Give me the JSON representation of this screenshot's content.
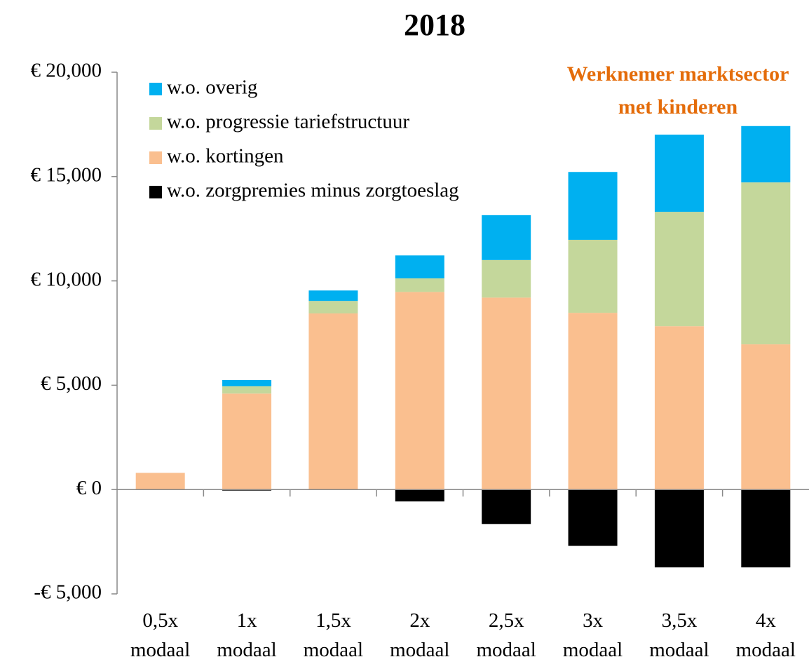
{
  "chart_data": {
    "type": "bar",
    "stacked": true,
    "title": "2018",
    "annotation": [
      "Werknemer marktsector",
      "met kinderen"
    ],
    "annotation_color": "#e46c0a",
    "categories": [
      [
        "0,5x",
        "modaal"
      ],
      [
        "1x",
        "modaal"
      ],
      [
        "1,5x",
        "modaal"
      ],
      [
        "2x",
        "modaal"
      ],
      [
        "2,5x",
        "modaal"
      ],
      [
        "3x",
        "modaal"
      ],
      [
        "3,5x",
        "modaal"
      ],
      [
        "4x",
        "modaal"
      ]
    ],
    "series": [
      {
        "name": "w.o. overig",
        "color": "#00b0f0",
        "values": [
          0,
          300,
          500,
          1100,
          2150,
          3250,
          3700,
          2700
        ]
      },
      {
        "name": "w.o. progressie tariefstructuur",
        "color": "#c4d79b",
        "values": [
          0,
          350,
          600,
          650,
          1800,
          3500,
          5480,
          7760
        ]
      },
      {
        "name": "w.o. kortingen",
        "color": "#fabf8f",
        "values": [
          800,
          4600,
          8440,
          9470,
          9200,
          8470,
          7830,
          6960
        ]
      },
      {
        "name": "w.o. zorgpremies minus zorgtoeslag",
        "color": "#000000",
        "values": [
          0,
          -50,
          0,
          -570,
          -1650,
          -2700,
          -3730,
          -3730
        ]
      }
    ],
    "ylim": [
      -5000,
      20000
    ],
    "yticks": [
      {
        "value": -5000,
        "label": "-€ 5,000"
      },
      {
        "value": 0,
        "label": "€ 0"
      },
      {
        "value": 5000,
        "label": "€ 5,000"
      },
      {
        "value": 10000,
        "label": "€ 10,000"
      },
      {
        "value": 15000,
        "label": "€ 15,000"
      },
      {
        "value": 20000,
        "label": "€ 20,000"
      }
    ],
    "grid": false,
    "legend": "upper left"
  }
}
